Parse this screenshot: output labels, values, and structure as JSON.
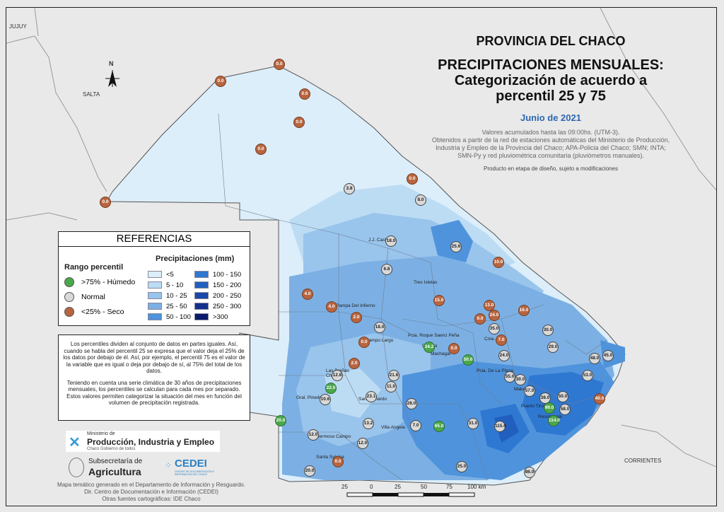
{
  "title": {
    "line1": "PROVINCIA DEL CHACO",
    "line2": "PRECIPITACIONES MENSUALES:",
    "line3": "Categorización de acuerdo a",
    "line4": "percentil 25 y 75",
    "date": "Junio de 2021",
    "note1": "Valores acumulados hasta las 09:00hs. (UTM-3).",
    "note2": "Obtenidos a partir de la red de estaciones automáticas del Ministerio de Producción, Industria y Empleo de la Provincia del Chaco; APA-Policia del Chaco; SMN; INTA; SMN-Py y red pluviométrica comunitaria (pluviómetros manuales).",
    "note3": "Producto en etapa de diseño, sujeto a modificaciones"
  },
  "neighbors": {
    "jujuy": "JUJUY",
    "salta": "SALTA",
    "corrientes": "CORRIENTES",
    "north": "N"
  },
  "legend": {
    "title": "REFERENCIAS",
    "percentile_head": "Rango percentil",
    "precip_head": "Precipitaciones (mm)",
    "percentile": [
      {
        "label": ">75% - Húmedo",
        "color": "#4aa74b"
      },
      {
        "label": "Normal",
        "color": "#d9d9d9"
      },
      {
        "label": "<25% - Seco",
        "color": "#b8653f"
      }
    ],
    "precip": [
      {
        "label": "<5",
        "color": "#dceefa"
      },
      {
        "label": "5 - 10",
        "color": "#bcdcf4"
      },
      {
        "label": "10 - 25",
        "color": "#99c4ec"
      },
      {
        "label": "25 - 50",
        "color": "#7cb0e4"
      },
      {
        "label": "50 - 100",
        "color": "#4f93dc"
      },
      {
        "label": "100 - 150",
        "color": "#2f78d2"
      },
      {
        "label": "150 - 200",
        "color": "#215fbf"
      },
      {
        "label": "200 - 250",
        "color": "#1b47a8"
      },
      {
        "label": "250 - 300",
        "color": "#13308e"
      },
      {
        "label": ">300",
        "color": "#0a1b6b"
      }
    ]
  },
  "info": {
    "p1": "Los percentiles dividen al conjunto de datos en partes iguales. Así, cuando se habla del percentil 25 se expresa que el valor deja el 25% de los datos por debajo de él. Así, por ejemplo, el percentil 75 es el valor de la variable que es igual o deja por debajo de sí, al 75% del total de los datos.",
    "p2": "Teniendo en cuenta una serie climática de 30 años de precipitaciones mensuales, los percentiles se calculan para cada mes por separado. Estos valores permiten categorizar la situación del mes en función del volumen de precipitación registrada."
  },
  "logos": {
    "ministry_small": "Ministerio de",
    "ministry_big": "Producción, Industria y Empleo",
    "ministry_sub": "Chaco Gobierno de todos",
    "subsec_small": "Subsecretaría de",
    "subsec_big": "Agricultura",
    "cedei": "CEDEI",
    "cedei_sub": "CENTRO DE DOCUMENTACIÓN E INFORMACIÓN DEL CHACO"
  },
  "credits": {
    "line1": "Mapa temático generado en el Departamento de Información y Resguardo.",
    "line2": "Dir. Centro de Documentación e Información (CEDEI)",
    "line3": "Otras fuentes cartográficas: IDE Chaco"
  },
  "scale_labels": [
    "25",
    "0",
    "25",
    "50",
    "75",
    "100 km"
  ],
  "places": [
    "J.J. Castelli",
    "Tres Isletas",
    "Pampa Del Infierno",
    "Campo Largo",
    "Pcia. Roque Saenz Peña",
    "Quitilipi",
    "Machagai",
    "Cnia. Elisa",
    "Pcia. De La Plaza",
    "Charata",
    "Las Breñas",
    "Gral. Pinedo",
    "San Bernardo",
    "Villa Angela",
    "Hermoso Campo",
    "Santa Sylvina",
    "Makallé",
    "Puerto Tirol",
    "Resistencia",
    "Avia Terai",
    "Concepción del Bermejo",
    "Las Garcitas",
    "Corzuela"
  ],
  "stations": [
    {
      "v": "0.0",
      "c": "dry"
    },
    {
      "v": "0.0",
      "c": "dry"
    },
    {
      "v": "0.0",
      "c": "dry"
    },
    {
      "v": "0.0",
      "c": "dry"
    },
    {
      "v": "0.0",
      "c": "dry"
    },
    {
      "v": "0.0",
      "c": "dry"
    },
    {
      "v": "0.0",
      "c": "dry"
    },
    {
      "v": "3.8",
      "c": "normal"
    },
    {
      "v": "8.0",
      "c": "normal"
    },
    {
      "v": "18.0",
      "c": "normal"
    },
    {
      "v": "25.6",
      "c": "normal"
    },
    {
      "v": "10.0",
      "c": "dry"
    },
    {
      "v": "6.8",
      "c": "normal"
    },
    {
      "v": "4.0",
      "c": "dry"
    },
    {
      "v": "4.0",
      "c": "dry"
    },
    {
      "v": "15.0",
      "c": "dry"
    },
    {
      "v": "13.0",
      "c": "dry"
    },
    {
      "v": "16.0",
      "c": "dry"
    },
    {
      "v": "2.0",
      "c": "dry"
    },
    {
      "v": "18.0",
      "c": "normal"
    },
    {
      "v": "0.0",
      "c": "dry"
    },
    {
      "v": "24.0",
      "c": "dry"
    },
    {
      "v": "35.0",
      "c": "normal"
    },
    {
      "v": "30.0",
      "c": "normal"
    },
    {
      "v": "0.0",
      "c": "dry"
    },
    {
      "v": "7.0",
      "c": "dry"
    },
    {
      "v": "29.0",
      "c": "normal"
    },
    {
      "v": "34.2",
      "c": "wet"
    },
    {
      "v": "0.0",
      "c": "dry"
    },
    {
      "v": "50.0",
      "c": "wet"
    },
    {
      "v": "24.0",
      "c": "normal"
    },
    {
      "v": "48.0",
      "c": "normal"
    },
    {
      "v": "45.0",
      "c": "normal"
    },
    {
      "v": "2.0",
      "c": "dry"
    },
    {
      "v": "12.8",
      "c": "normal"
    },
    {
      "v": "21.6",
      "c": "normal"
    },
    {
      "v": "55.0",
      "c": "normal"
    },
    {
      "v": "30.0",
      "c": "normal"
    },
    {
      "v": "53.0",
      "c": "normal"
    },
    {
      "v": "22.0",
      "c": "wet"
    },
    {
      "v": "11.0",
      "c": "normal"
    },
    {
      "v": "57.0",
      "c": "normal"
    },
    {
      "v": "10.6",
      "c": "normal"
    },
    {
      "v": "23.1",
      "c": "normal"
    },
    {
      "v": "38.0",
      "c": "normal"
    },
    {
      "v": "50.0",
      "c": "normal"
    },
    {
      "v": "40.0",
      "c": "dry"
    },
    {
      "v": "28.0",
      "c": "normal"
    },
    {
      "v": "99.0",
      "c": "wet"
    },
    {
      "v": "58.0",
      "c": "normal"
    },
    {
      "v": "20.0",
      "c": "wet"
    },
    {
      "v": "13.2",
      "c": "normal"
    },
    {
      "v": "7.0",
      "c": "normal"
    },
    {
      "v": "65.0",
      "c": "wet"
    },
    {
      "v": "31.0",
      "c": "normal"
    },
    {
      "v": "115.0",
      "c": "normal"
    },
    {
      "v": "114.0",
      "c": "wet"
    },
    {
      "v": "12.0",
      "c": "normal"
    },
    {
      "v": "12.0",
      "c": "normal"
    },
    {
      "v": "0.0",
      "c": "dry"
    },
    {
      "v": "25.0",
      "c": "normal"
    },
    {
      "v": "20.0",
      "c": "normal"
    },
    {
      "v": "86.0",
      "c": "normal"
    }
  ]
}
